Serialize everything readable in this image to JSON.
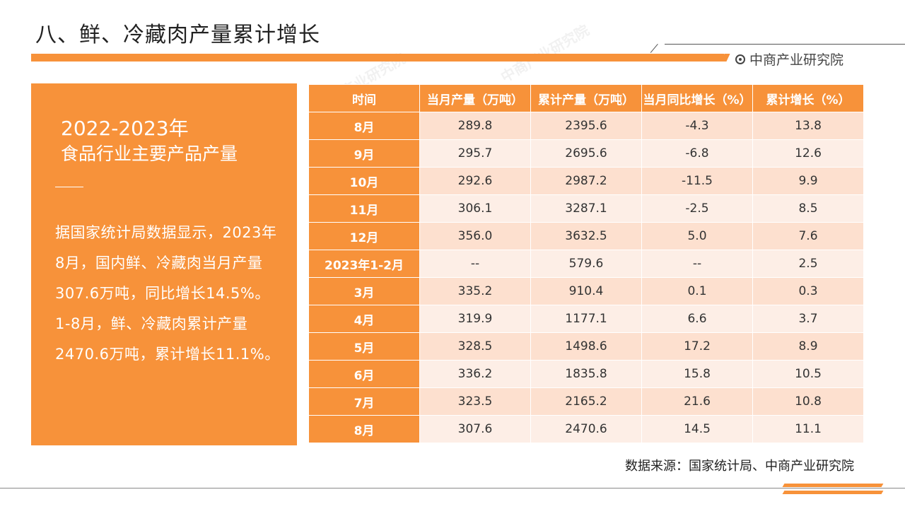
{
  "header": {
    "title": "八、鲜、冷藏肉产量累计增长",
    "brand": "中商产业研究院"
  },
  "left_panel": {
    "year": "2022-2023年",
    "subtitle": "食品行业主要产品产量",
    "body": "据国家统计局数据显示，2023年8月，国内鲜、冷藏肉当月产量307.6万吨，同比增长14.5%。1-8月，鲜、冷藏肉累计产量2470.6万吨，累计增长11.1%。"
  },
  "table": {
    "headers": [
      "时间",
      "当月产量（万吨）",
      "累计产量（万吨）",
      "当月同比增长（%）",
      "累计增长（%）"
    ],
    "rows": [
      [
        "8月",
        "289.8",
        "2395.6",
        "-4.3",
        "13.8"
      ],
      [
        "9月",
        "295.7",
        "2695.6",
        "-6.8",
        "12.6"
      ],
      [
        "10月",
        "292.6",
        "2987.2",
        "-11.5",
        "9.9"
      ],
      [
        "11月",
        "306.1",
        "3287.1",
        "-2.5",
        "8.5"
      ],
      [
        "12月",
        "356.0",
        "3632.5",
        "5.0",
        "7.6"
      ],
      [
        "2023年1-2月",
        "--",
        "579.6",
        "--",
        "2.5"
      ],
      [
        "3月",
        "335.2",
        "910.4",
        "0.1",
        "0.3"
      ],
      [
        "4月",
        "319.9",
        "1177.1",
        "6.6",
        "3.7"
      ],
      [
        "5月",
        "328.5",
        "1498.6",
        "17.2",
        "8.9"
      ],
      [
        "6月",
        "336.2",
        "1835.8",
        "15.8",
        "10.5"
      ],
      [
        "7月",
        "323.5",
        "2165.2",
        "21.6",
        "10.8"
      ],
      [
        "8月",
        "307.6",
        "2470.6",
        "14.5",
        "11.1"
      ]
    ]
  },
  "source": "数据来源：国家统计局、中商产业研究院",
  "colors": {
    "accent": "#f7923a",
    "row_odd": "#fde0cf",
    "row_even": "#fdeee6"
  }
}
